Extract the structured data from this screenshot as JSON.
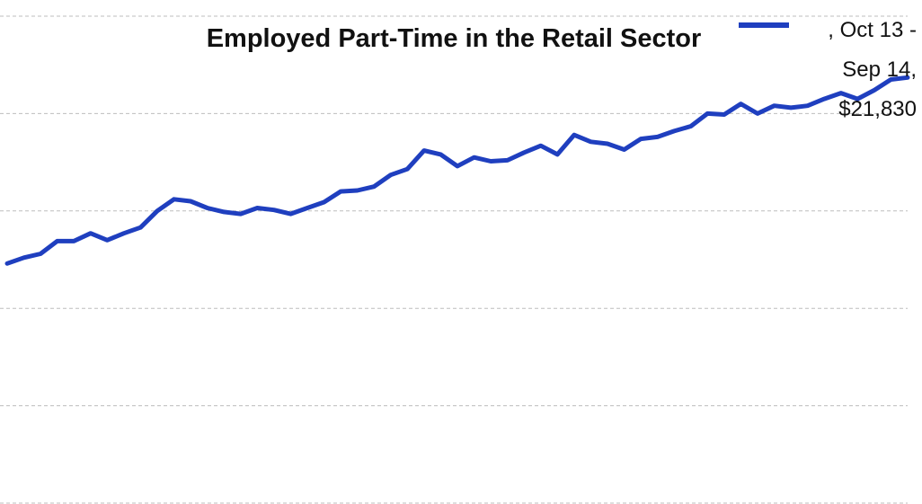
{
  "chart_data": {
    "type": "line",
    "title": "Employed Part-Time in the Retail Sector",
    "series": [
      {
        "name": ", Oct 13 - Sep 14, $21,830",
        "color": "#1f3fbf",
        "values": [
          2.46,
          2.52,
          2.56,
          2.69,
          2.69,
          2.77,
          2.7,
          2.77,
          2.83,
          3.0,
          3.12,
          3.1,
          3.03,
          2.99,
          2.97,
          3.03,
          3.01,
          2.97,
          3.03,
          3.09,
          3.2,
          3.21,
          3.25,
          3.37,
          3.43,
          3.62,
          3.58,
          3.46,
          3.55,
          3.51,
          3.52,
          3.6,
          3.67,
          3.58,
          3.78,
          3.71,
          3.69,
          3.63,
          3.74,
          3.76,
          3.82,
          3.87,
          4.0,
          3.99,
          4.1,
          4.0,
          4.08,
          4.06,
          4.08,
          4.15,
          4.21,
          4.15,
          4.24,
          4.35,
          4.37
        ]
      }
    ],
    "ylim": [
      0,
      5
    ],
    "yticks": [
      0,
      1,
      2,
      3,
      4,
      5
    ],
    "grid": true,
    "legend": "top-right"
  }
}
